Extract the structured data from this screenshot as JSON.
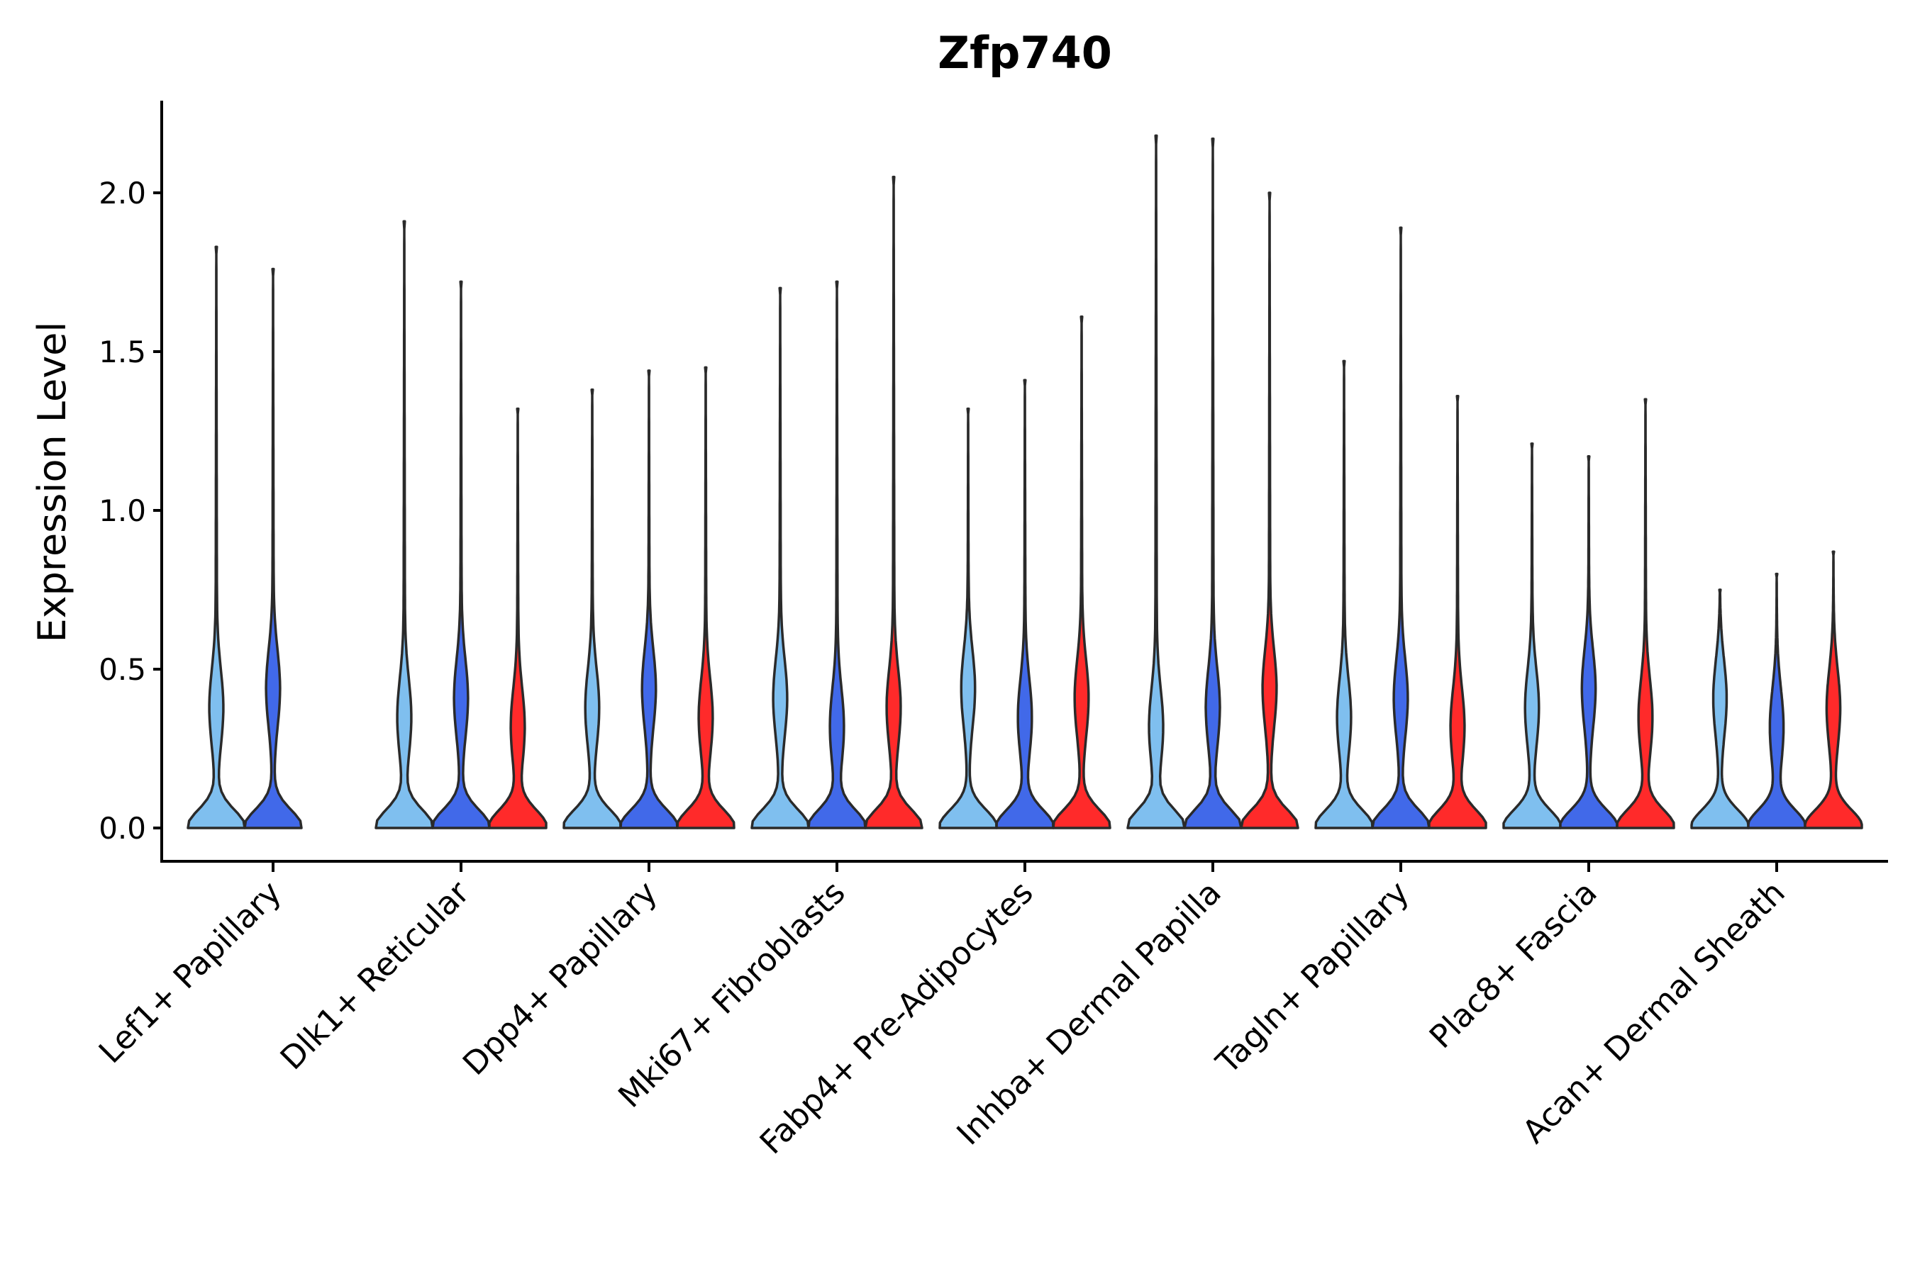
{
  "chart_data": {
    "type": "violin",
    "title": "Zfp740",
    "xlabel": "",
    "ylabel": "Expression Level",
    "ylim": [
      -0.11,
      2.29
    ],
    "yticks": [
      "0.0",
      "0.5",
      "1.0",
      "1.5",
      "2.0"
    ],
    "grid": false,
    "categories": [
      "Lef1+ Papillary",
      "Dlk1+ Reticular",
      "Dpp4+ Papillary",
      "Mki67+ Fibroblasts",
      "Fabp4+ Pre-Adipocytes",
      "Inhba+ Dermal Papilla",
      "Tagln+ Papillary",
      "Plac8+ Fascia",
      "Acan+ Dermal Sheath"
    ],
    "series_colors": [
      "#7fbfef",
      "#4169e9",
      "#ff2a2a"
    ],
    "violins": [
      {
        "category": 0,
        "series": 0,
        "max": 1.83
      },
      {
        "category": 0,
        "series": 1,
        "max": 1.76
      },
      {
        "category": 1,
        "series": 0,
        "max": 1.91
      },
      {
        "category": 1,
        "series": 1,
        "max": 1.72
      },
      {
        "category": 1,
        "series": 2,
        "max": 1.32
      },
      {
        "category": 2,
        "series": 0,
        "max": 1.38
      },
      {
        "category": 2,
        "series": 1,
        "max": 1.44
      },
      {
        "category": 2,
        "series": 2,
        "max": 1.45
      },
      {
        "category": 3,
        "series": 0,
        "max": 1.7
      },
      {
        "category": 3,
        "series": 1,
        "max": 1.72
      },
      {
        "category": 3,
        "series": 2,
        "max": 2.05
      },
      {
        "category": 4,
        "series": 0,
        "max": 1.32
      },
      {
        "category": 4,
        "series": 1,
        "max": 1.41
      },
      {
        "category": 4,
        "series": 2,
        "max": 1.61
      },
      {
        "category": 5,
        "series": 0,
        "max": 2.18
      },
      {
        "category": 5,
        "series": 1,
        "max": 2.17
      },
      {
        "category": 5,
        "series": 2,
        "max": 2.0
      },
      {
        "category": 6,
        "series": 0,
        "max": 1.47
      },
      {
        "category": 6,
        "series": 1,
        "max": 1.89
      },
      {
        "category": 6,
        "series": 2,
        "max": 1.36
      },
      {
        "category": 7,
        "series": 0,
        "max": 1.21
      },
      {
        "category": 7,
        "series": 1,
        "max": 1.17
      },
      {
        "category": 7,
        "series": 2,
        "max": 1.35
      },
      {
        "category": 8,
        "series": 0,
        "max": 0.75
      },
      {
        "category": 8,
        "series": 1,
        "max": 0.8
      },
      {
        "category": 8,
        "series": 2,
        "max": 0.87
      }
    ]
  }
}
